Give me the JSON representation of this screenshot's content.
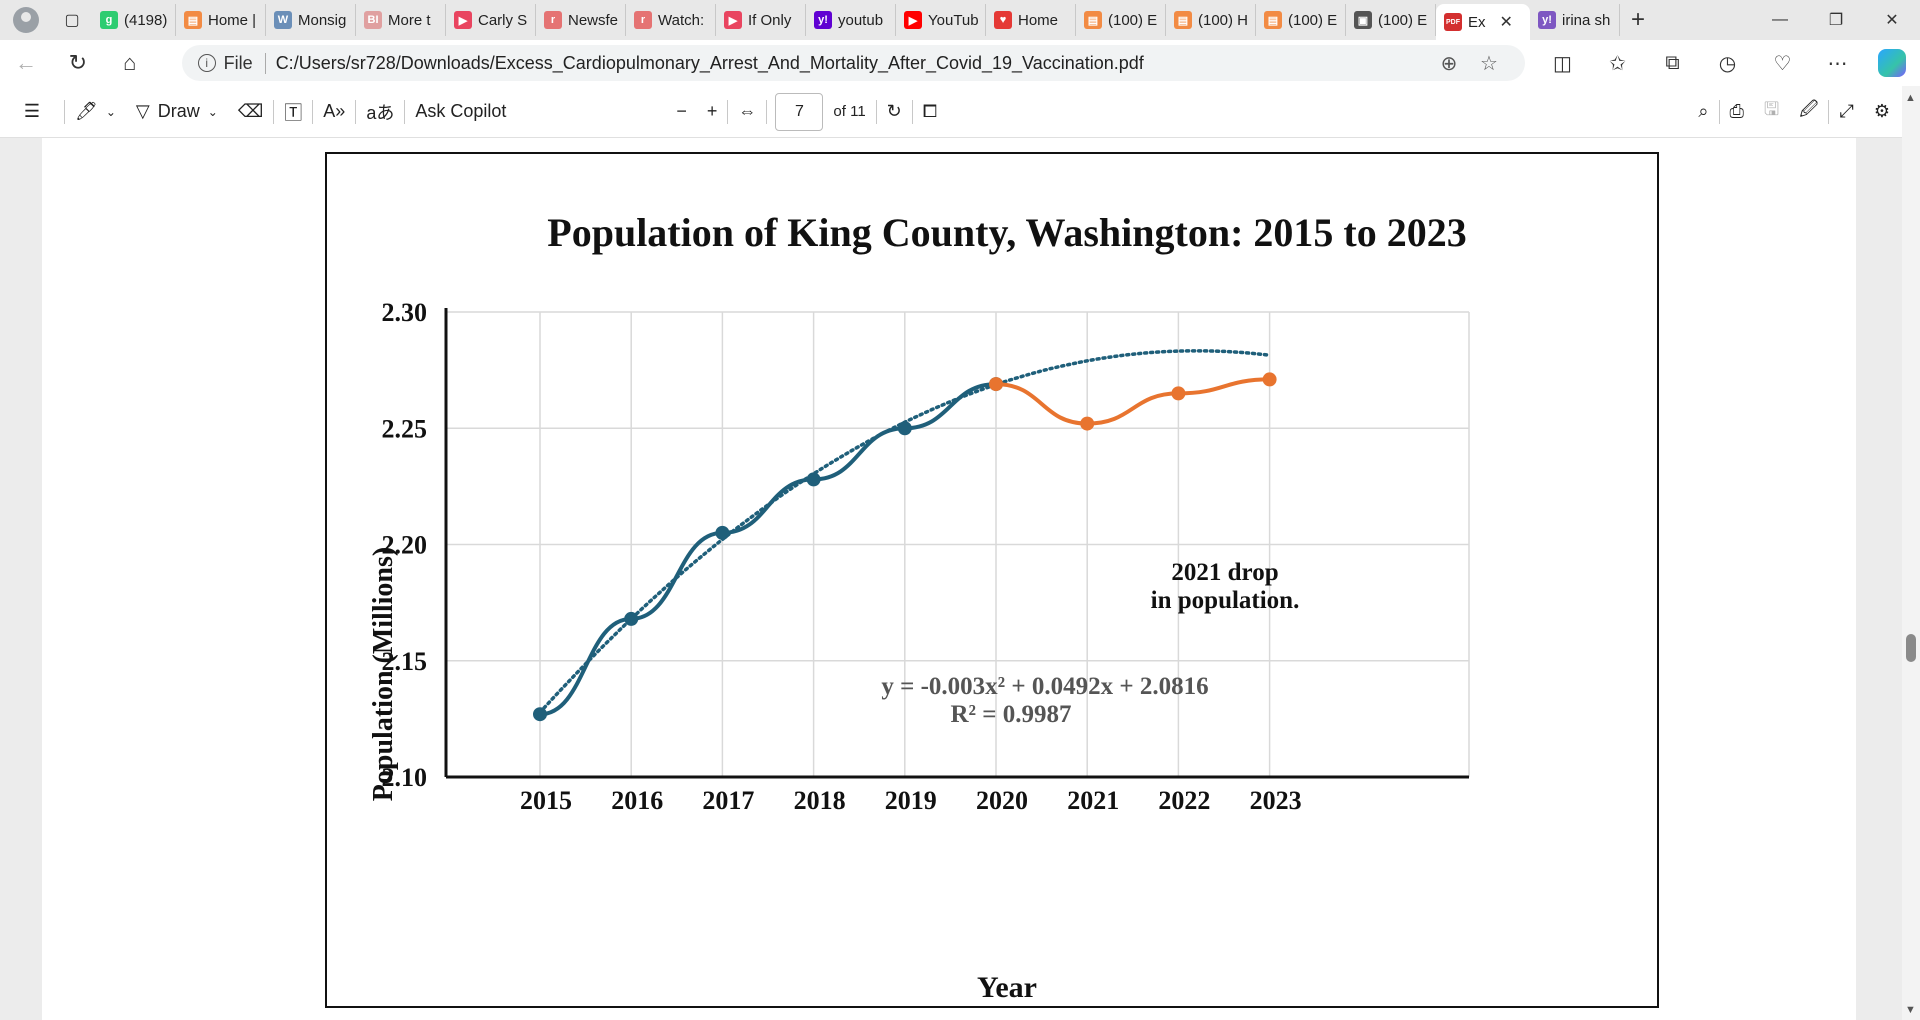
{
  "tabs": [
    {
      "label": "(4198)",
      "color": "#2ecc71",
      "glyph": "g"
    },
    {
      "label": "Home |",
      "color": "#f28b44",
      "glyph": "▤"
    },
    {
      "label": "Monsig",
      "color": "#6b8fb8",
      "glyph": "W"
    },
    {
      "label": "More t",
      "color": "#e0a0a0",
      "glyph": "BI"
    },
    {
      "label": "Carly S",
      "color": "#e94560",
      "glyph": "▶"
    },
    {
      "label": "Newsfe",
      "color": "#e57373",
      "glyph": "r"
    },
    {
      "label": "Watch:",
      "color": "#e57373",
      "glyph": "r"
    },
    {
      "label": "If Only",
      "color": "#e94560",
      "glyph": "▶"
    },
    {
      "label": "youtub",
      "color": "#6001d2",
      "glyph": "y!"
    },
    {
      "label": "YouTub",
      "color": "#ff0000",
      "glyph": "▶"
    },
    {
      "label": "Home",
      "color": "#e53935",
      "glyph": "♥"
    },
    {
      "label": "(100) E",
      "color": "#f28b44",
      "glyph": "▤"
    },
    {
      "label": "(100) H",
      "color": "#f28b44",
      "glyph": "▤"
    },
    {
      "label": "(100) E",
      "color": "#f28b44",
      "glyph": "▤"
    },
    {
      "label": "(100) E",
      "color": "#555555",
      "glyph": "▣"
    },
    {
      "label": "Ex",
      "color": "#d32f2f",
      "glyph": "PDF",
      "active": true
    },
    {
      "label": "irina sh",
      "color": "#7e57c2",
      "glyph": "y!"
    }
  ],
  "address": {
    "file_label": "File",
    "url": "C:/Users/sr728/Downloads/Excess_Cardiopulmonary_Arrest_And_Mortality_After_Covid_19_Vaccination.pdf"
  },
  "pdf_toolbar": {
    "draw_label": "Draw",
    "ask_copilot_label": "Ask Copilot",
    "page_current": "7",
    "page_total": "of 11"
  },
  "chart_data": {
    "type": "line",
    "title": "Population of King County, Washington: 2015 to 2023",
    "xlabel": "Year",
    "ylabel": "Population (Millions)",
    "categories": [
      "2015",
      "2016",
      "2017",
      "2018",
      "2019",
      "2020",
      "2021",
      "2022",
      "2023"
    ],
    "ylim": [
      2.1,
      2.3
    ],
    "yticks": [
      "2.30",
      "2.25",
      "2.20",
      "2.15",
      "2.10"
    ],
    "series": [
      {
        "x": [
          "2015",
          "2016",
          "2017",
          "2018",
          "2019",
          "2020"
        ],
        "values": [
          2.127,
          2.168,
          2.205,
          2.228,
          2.25,
          2.269
        ],
        "color": "#1f5f7a"
      },
      {
        "x": [
          "2020",
          "2021",
          "2022",
          "2023"
        ],
        "values": [
          2.269,
          2.252,
          2.265,
          2.271
        ],
        "color": "#e8742f"
      }
    ],
    "trendline": {
      "equation": "y = -0.003x² + 0.0492x + 2.0816",
      "r_squared": "R² = 0.9987",
      "coefficients": [
        -0.003,
        0.0492,
        2.0816
      ],
      "color": "#1f5f7a"
    },
    "annotation": {
      "line1": "2021 drop",
      "line2": "in population."
    },
    "grid": true
  }
}
